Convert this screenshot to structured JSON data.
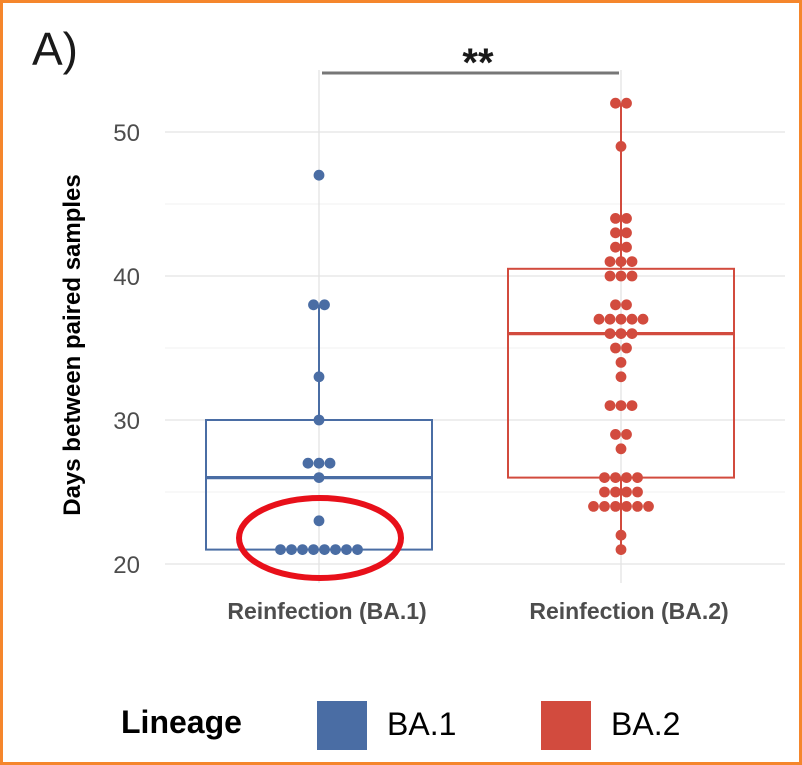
{
  "panel_label": "A)",
  "chart_data": {
    "type": "box",
    "ylabel": "Days between paired samples",
    "xlabel": "",
    "ylim": [
      19,
      54
    ],
    "yticks": [
      20,
      30,
      40,
      50
    ],
    "categories": [
      "Reinfection (BA.1)",
      "Reinfection (BA.2)"
    ],
    "series": [
      {
        "name": "BA.1",
        "category": "Reinfection (BA.1)",
        "color": "#4A6DA4",
        "box": {
          "min": 21,
          "q1": 21,
          "median": 26,
          "q3": 30,
          "max": 38
        },
        "points": [
          21,
          21,
          21,
          21,
          21,
          21,
          21,
          21,
          23,
          26,
          27,
          27,
          27,
          30,
          33,
          38,
          38,
          47
        ]
      },
      {
        "name": "BA.2",
        "category": "Reinfection (BA.2)",
        "color": "#D24B3E",
        "box": {
          "min": 21,
          "q1": 26,
          "median": 36,
          "q3": 40.5,
          "max": 52
        },
        "points": [
          21,
          22,
          24,
          24,
          24,
          24,
          24,
          24,
          25,
          25,
          25,
          25,
          26,
          26,
          26,
          26,
          28,
          29,
          29,
          31,
          31,
          31,
          33,
          34,
          35,
          35,
          36,
          36,
          36,
          37,
          37,
          37,
          37,
          37,
          38,
          38,
          40,
          40,
          40,
          41,
          41,
          41,
          42,
          42,
          43,
          43,
          44,
          44,
          49,
          52,
          52
        ]
      }
    ],
    "significance": {
      "between": [
        "Reinfection (BA.1)",
        "Reinfection (BA.2)"
      ],
      "label": "**"
    },
    "grid": true,
    "legend": {
      "title": "Lineage",
      "position": "bottom",
      "entries": [
        "BA.1",
        "BA.2"
      ]
    }
  },
  "annotation": {
    "type": "ellipse",
    "color": "#E8101A",
    "target": "BA.1 points at 21 days"
  },
  "frame_color": "#F5862C"
}
